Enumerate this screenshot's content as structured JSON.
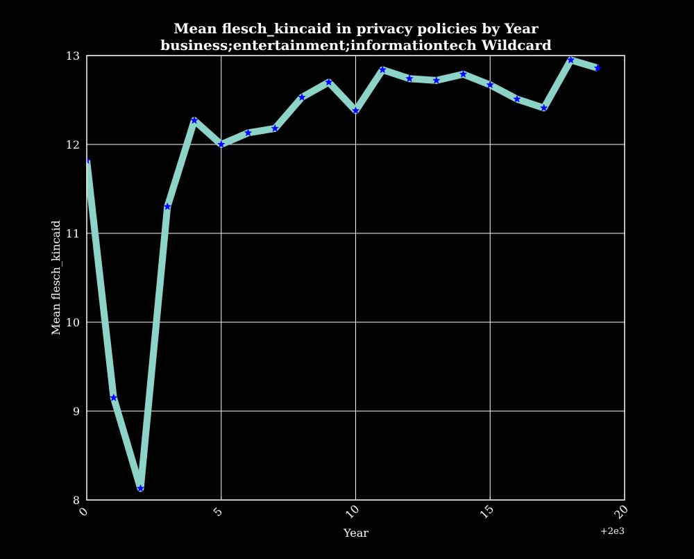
{
  "chart_data": {
    "type": "line",
    "title": "Mean flesch_kincaid in privacy policies by Year",
    "subtitle": "business;entertainment;informationtech Wildcard",
    "xlabel": "Year",
    "ylabel": "Mean flesch_kincaid",
    "x_offset_label": "+2e3",
    "x_offset": 2000,
    "xlim": [
      0,
      20
    ],
    "ylim": [
      8,
      13
    ],
    "xticks": [
      0,
      5,
      10,
      15,
      20
    ],
    "xtick_labels": [
      "0",
      "5",
      "10",
      "15",
      "20"
    ],
    "yticks": [
      8,
      9,
      10,
      11,
      12,
      13
    ],
    "ytick_labels": [
      "8",
      "9",
      "10",
      "11",
      "12",
      "13"
    ],
    "grid": true,
    "series": [
      {
        "name": "Mean flesch_kincaid",
        "line_color": "#8dd3c7",
        "marker": "star",
        "marker_color": "#0000ff",
        "x": [
          0,
          1,
          2,
          3,
          4,
          5,
          6,
          7,
          8,
          9,
          10,
          11,
          12,
          13,
          14,
          15,
          16,
          17,
          18,
          19
        ],
        "values": [
          11.82,
          9.15,
          8.13,
          11.3,
          12.27,
          12.0,
          12.13,
          12.18,
          12.53,
          12.7,
          12.38,
          12.84,
          12.74,
          12.72,
          12.79,
          12.67,
          12.51,
          12.41,
          12.95,
          12.86
        ]
      }
    ]
  },
  "colors": {
    "background": "#000000",
    "axes": "#ffffff",
    "grid": "#ffffff",
    "text": "#ffffff"
  }
}
